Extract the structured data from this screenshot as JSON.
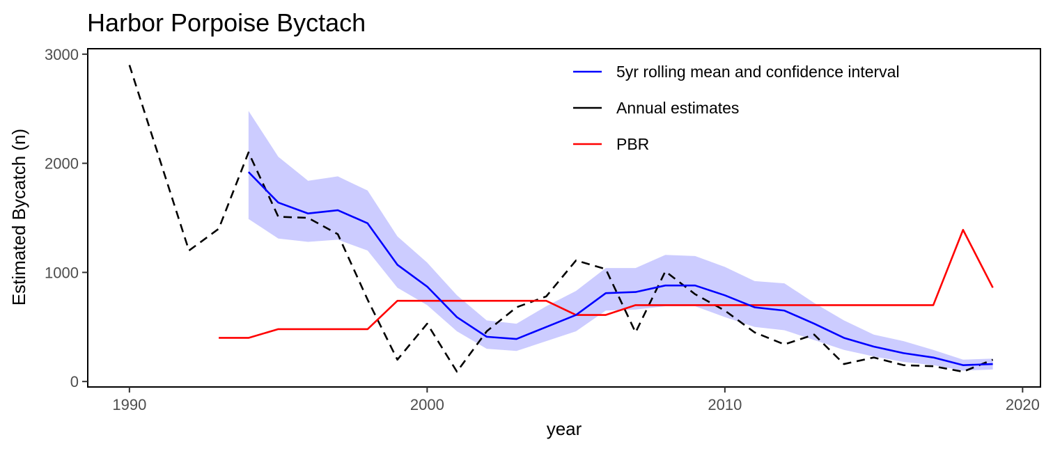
{
  "chart_data": {
    "type": "line",
    "title": "Harbor Porpoise Byctach",
    "xlabel": "year",
    "ylabel": "Estimated Bycatch (n)",
    "xlim": [
      1988.6,
      2020.6
    ],
    "ylim": [
      -50,
      3050
    ],
    "x_ticks": [
      1990,
      2000,
      2010,
      2020
    ],
    "y_ticks": [
      0,
      1000,
      2000,
      3000
    ],
    "grid": false,
    "legend_position": "top-right",
    "series": [
      {
        "name": "Annual estimates",
        "style": "dashed",
        "color": "#000000",
        "x": [
          1990,
          1991,
          1992,
          1993,
          1994,
          1995,
          1996,
          1997,
          1998,
          1999,
          2000,
          2001,
          2002,
          2003,
          2004,
          2005,
          2006,
          2007,
          2008,
          2009,
          2010,
          2011,
          2012,
          2013,
          2014,
          2015,
          2016,
          2017,
          2018,
          2019
        ],
        "y": [
          2900,
          2050,
          1200,
          1400,
          2100,
          1510,
          1500,
          1350,
          750,
          200,
          530,
          90,
          460,
          680,
          780,
          1110,
          1030,
          450,
          1010,
          800,
          650,
          450,
          340,
          430,
          160,
          220,
          150,
          140,
          90,
          200
        ]
      },
      {
        "name": "5yr rolling mean and confidence interval",
        "style": "solid",
        "color": "#0000ff",
        "band_color": "#ccccff",
        "x": [
          1994,
          1995,
          1996,
          1997,
          1998,
          1999,
          2000,
          2001,
          2002,
          2003,
          2004,
          2005,
          2006,
          2007,
          2008,
          2009,
          2010,
          2011,
          2012,
          2013,
          2014,
          2015,
          2016,
          2017,
          2018,
          2019
        ],
        "y": [
          1920,
          1640,
          1540,
          1570,
          1450,
          1070,
          870,
          590,
          410,
          390,
          500,
          610,
          810,
          820,
          880,
          880,
          790,
          680,
          650,
          530,
          400,
          320,
          260,
          220,
          150,
          160
        ],
        "lower": [
          1490,
          1310,
          1280,
          1300,
          1200,
          860,
          700,
          460,
          300,
          280,
          370,
          460,
          650,
          660,
          690,
          690,
          590,
          500,
          470,
          380,
          290,
          230,
          180,
          150,
          100,
          110
        ],
        "upper": [
          2480,
          2060,
          1840,
          1880,
          1750,
          1330,
          1090,
          790,
          560,
          530,
          690,
          830,
          1040,
          1040,
          1160,
          1150,
          1050,
          920,
          900,
          720,
          560,
          430,
          370,
          290,
          200,
          210
        ]
      },
      {
        "name": "PBR",
        "style": "solid",
        "color": "#ff0000",
        "x": [
          1993,
          1994,
          1995,
          1996,
          1997,
          1998,
          1999,
          2000,
          2001,
          2002,
          2003,
          2004,
          2005,
          2006,
          2007,
          2008,
          2009,
          2010,
          2011,
          2012,
          2013,
          2014,
          2015,
          2016,
          2017,
          2018,
          2019
        ],
        "y": [
          400,
          400,
          480,
          480,
          480,
          480,
          740,
          740,
          740,
          740,
          740,
          740,
          610,
          610,
          700,
          700,
          700,
          700,
          700,
          700,
          700,
          700,
          700,
          700,
          700,
          1390,
          860
        ]
      }
    ]
  }
}
